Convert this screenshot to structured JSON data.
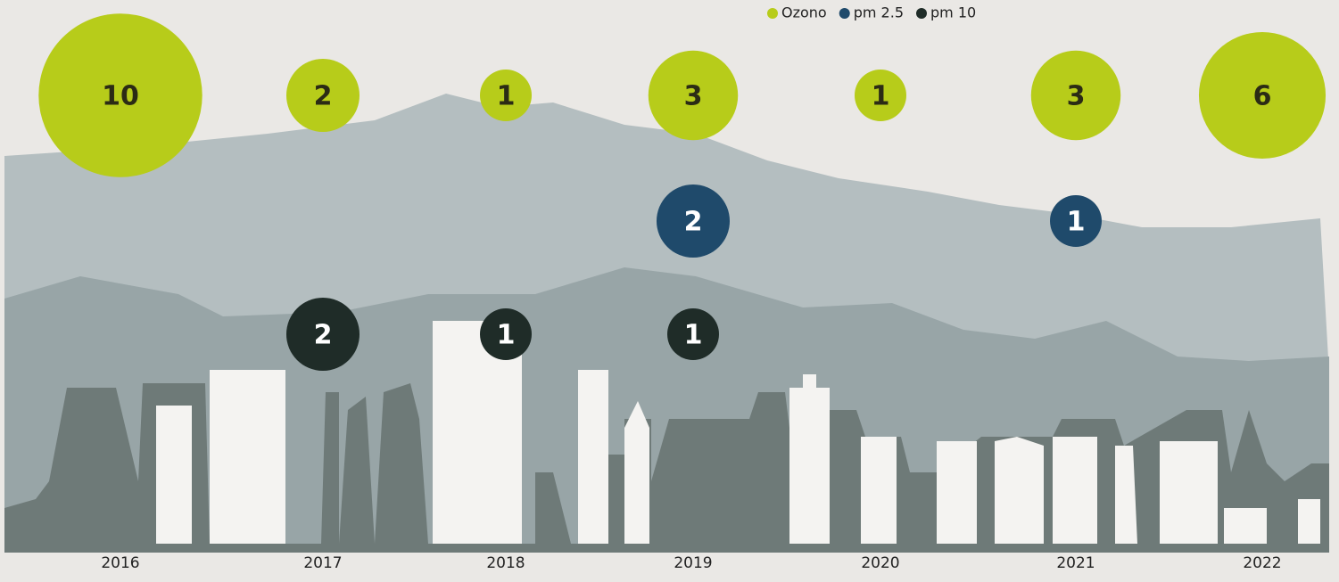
{
  "chart_data": {
    "type": "bubble",
    "categories": [
      "2016",
      "2017",
      "2018",
      "2019",
      "2020",
      "2021",
      "2022"
    ],
    "series": [
      {
        "name": "Ozono",
        "color": "#b7cc1a",
        "values": [
          10,
          2,
          1,
          3,
          1,
          3,
          6
        ]
      },
      {
        "name": "pm 2.5",
        "color": "#1f4a6b",
        "values": [
          null,
          null,
          null,
          2,
          null,
          1,
          null
        ]
      },
      {
        "name": "pm 10",
        "color": "#1f2c28",
        "values": [
          null,
          2,
          1,
          1,
          null,
          null,
          null
        ]
      }
    ]
  }
}
